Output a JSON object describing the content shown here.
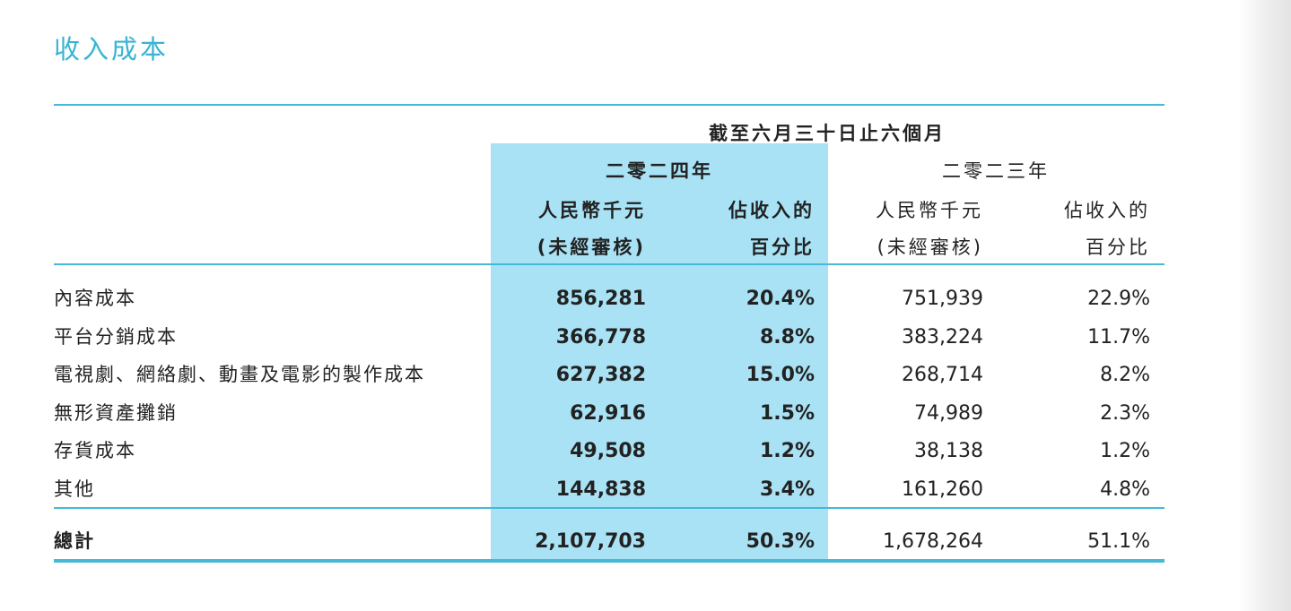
{
  "title": "收入成本",
  "header": {
    "period": "截至六月三十日止六個月",
    "year_2024": "二零二四年",
    "year_2023": "二零二三年",
    "col_rmb_2024": "人民幣千元",
    "col_unaudited_2024": "(未經審核)",
    "col_pct_line1_2024": "佔收入的",
    "col_pct_line2_2024": "百分比",
    "col_rmb_2023": "人民幣千元",
    "col_unaudited_2023": "(未經審核)",
    "col_pct_line1_2023": "佔收入的",
    "col_pct_line2_2023": "百分比"
  },
  "rows": [
    {
      "label": "內容成本",
      "v2024": "856,281",
      "p2024": "20.4%",
      "v2023": "751,939",
      "p2023": "22.9%"
    },
    {
      "label": "平台分銷成本",
      "v2024": "366,778",
      "p2024": "8.8%",
      "v2023": "383,224",
      "p2023": "11.7%"
    },
    {
      "label": "電視劇、網絡劇、動畫及電影的製作成本",
      "v2024": "627,382",
      "p2024": "15.0%",
      "v2023": "268,714",
      "p2023": "8.2%"
    },
    {
      "label": "無形資產攤銷",
      "v2024": "62,916",
      "p2024": "1.5%",
      "v2023": "74,989",
      "p2023": "2.3%"
    },
    {
      "label": "存貨成本",
      "v2024": "49,508",
      "p2024": "1.2%",
      "v2023": "38,138",
      "p2023": "1.2%"
    },
    {
      "label": "其他",
      "v2024": "144,838",
      "p2024": "3.4%",
      "v2023": "161,260",
      "p2023": "4.8%"
    }
  ],
  "total": {
    "label": "總計",
    "v2024": "2,107,703",
    "p2024": "50.3%",
    "v2023": "1,678,264",
    "p2023": "51.1%"
  },
  "colors": {
    "accent": "#38b4d2",
    "highlight": "#a9e2f5",
    "rule": "#45b9d6"
  }
}
